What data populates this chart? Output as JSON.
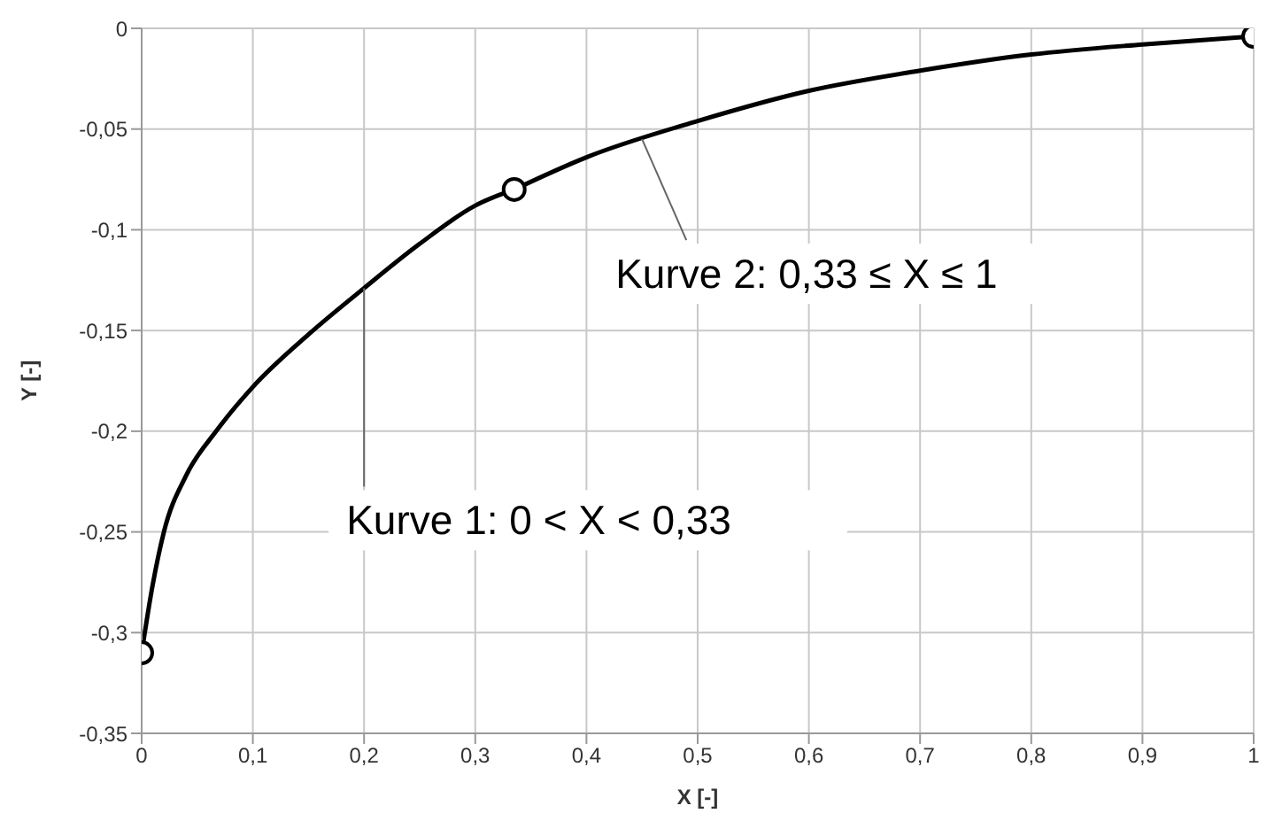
{
  "chart_data": {
    "type": "line",
    "xlabel": "X [-]",
    "ylabel": "Y [-]",
    "xlim": [
      0,
      1
    ],
    "xticks": [
      0,
      {
        "value": 0.1,
        "label": "0,1"
      },
      {
        "value": 0.2,
        "label": "0,2"
      },
      {
        "value": 0.3,
        "label": "0,3"
      },
      {
        "value": 0.4,
        "label": "0,4"
      },
      {
        "value": 0.5,
        "label": "0,5"
      },
      {
        "value": 0.6,
        "label": "0,6"
      },
      {
        "value": 0.7,
        "label": "0,7"
      },
      {
        "value": 0.8,
        "label": "0,8"
      },
      {
        "value": 0.9,
        "label": "0,9"
      },
      1
    ],
    "ylim": [
      -0.35,
      0
    ],
    "yticks": [
      {
        "value": -0.35,
        "label": "-0,35"
      },
      {
        "value": -0.3,
        "label": "-0,3"
      },
      {
        "value": -0.25,
        "label": "-0,25"
      },
      {
        "value": -0.2,
        "label": "-0,2"
      },
      {
        "value": -0.15,
        "label": "-0,15"
      },
      {
        "value": -0.1,
        "label": "-0,1"
      },
      {
        "value": -0.05,
        "label": "-0,05"
      },
      0
    ],
    "grid": true,
    "line_style": "solid",
    "series": [
      {
        "color": "#000000",
        "marker": "none",
        "x": [
          0,
          0.01,
          0.02,
          0.04,
          0.067,
          0.1,
          0.15,
          0.2,
          0.25,
          0.3,
          0.335
        ],
        "values": [
          -0.31,
          -0.276,
          -0.25,
          -0.222,
          -0.2,
          -0.178,
          -0.152,
          -0.129,
          -0.107,
          -0.088,
          -0.08
        ]
      },
      {
        "color": "#000000",
        "marker": "none",
        "x": [
          0.335,
          0.4,
          0.5,
          0.6,
          0.7,
          0.8,
          0.9,
          1
        ],
        "values": [
          -0.08,
          -0.064,
          -0.046,
          -0.031,
          -0.021,
          -0.013,
          -0.008,
          -0.004
        ]
      },
      {
        "type": "scatter",
        "color": "#000000",
        "marker": "circle",
        "x": [
          0,
          0.335,
          1
        ],
        "values": [
          -0.31,
          -0.08,
          -0.004
        ]
      }
    ],
    "annotations": [
      {
        "text": "Kurve 1:  0 < X < 0,33",
        "x": 0.2,
        "y": -0.129
      },
      {
        "text": "Kurve 2: 0,33 ≤ X ≤ 1",
        "x": 0.45,
        "y": -0.055
      }
    ]
  }
}
